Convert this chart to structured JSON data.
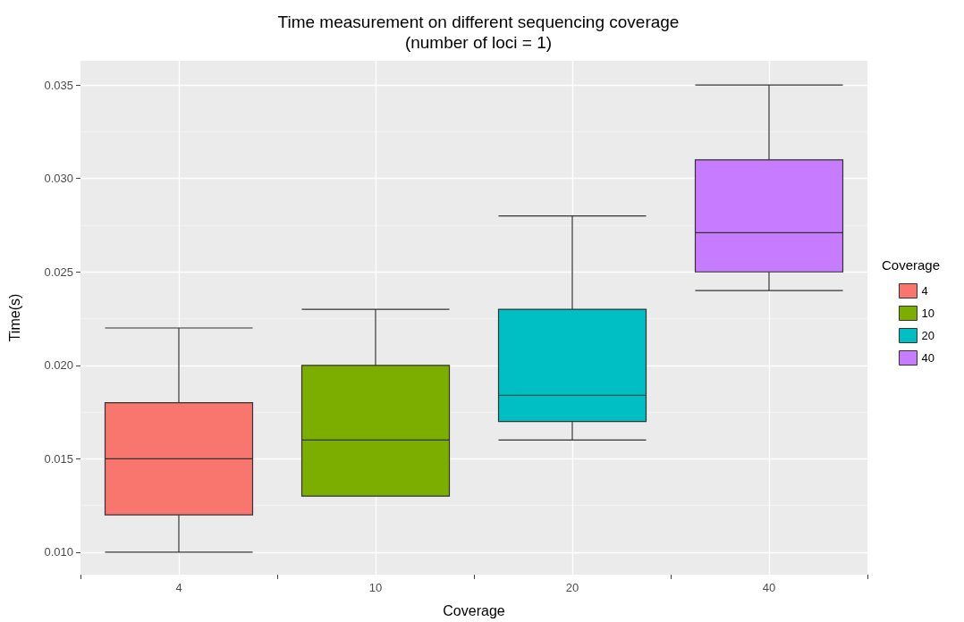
{
  "chart_data": {
    "type": "box",
    "title": "Time measurement on different sequencing coverage\n(number of loci = 1)",
    "xlabel": "Coverage",
    "ylabel": "Time(s)",
    "legend_title": "Coverage",
    "legend": "right",
    "grid": true,
    "categories": [
      "4",
      "10",
      "20",
      "40"
    ],
    "series": [
      {
        "name": "4",
        "color": "#f8766d",
        "boxes": [
          {
            "low": 0.01,
            "q1": 0.012,
            "median": 0.015,
            "q3": 0.018,
            "high": 0.022
          },
          null,
          null,
          null
        ]
      },
      {
        "name": "10",
        "color": "#7cae00",
        "boxes": [
          null,
          {
            "low": 0.013,
            "q1": 0.013,
            "median": 0.016,
            "q3": 0.02,
            "high": 0.023
          },
          null,
          null
        ]
      },
      {
        "name": "20",
        "color": "#00bfc4",
        "boxes": [
          null,
          null,
          {
            "low": 0.016,
            "q1": 0.017,
            "median": 0.0184,
            "q3": 0.023,
            "high": 0.028
          },
          null
        ]
      },
      {
        "name": "40",
        "color": "#c77cff",
        "boxes": [
          null,
          null,
          null,
          {
            "low": 0.024,
            "q1": 0.025,
            "median": 0.0271,
            "q3": 0.031,
            "high": 0.035
          }
        ]
      }
    ],
    "ylim": [
      0.0088,
      0.0363
    ],
    "yticks": [
      {
        "value": 0.01,
        "label": "0.010"
      },
      {
        "value": 0.015,
        "label": "0.015"
      },
      {
        "value": 0.02,
        "label": "0.020"
      },
      {
        "value": 0.025,
        "label": "0.025"
      },
      {
        "value": 0.03,
        "label": "0.030"
      },
      {
        "value": 0.035,
        "label": "0.035"
      }
    ]
  }
}
